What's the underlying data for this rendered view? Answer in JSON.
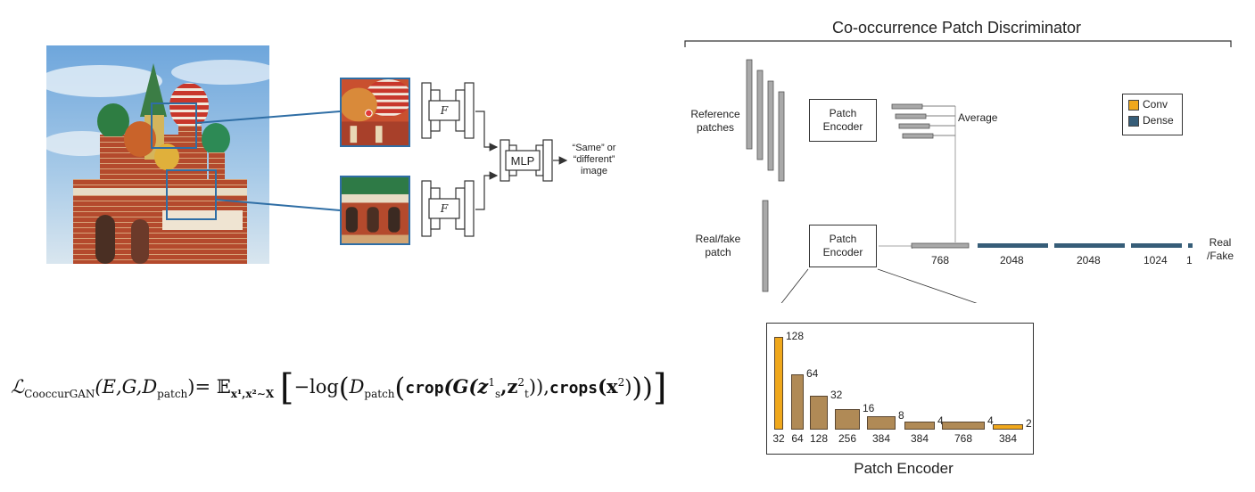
{
  "left_panel": {
    "net_f_label": "F",
    "mlp_label": "MLP",
    "output_label_line1": "“Same” or",
    "output_label_line2": "“different”",
    "output_label_line3": "image"
  },
  "equation": {
    "loss_symbol": "ℒ",
    "loss_subscript": "CooccurGAN",
    "loss_args": "(E,G,D",
    "loss_args_sub": "patch",
    "expectation": "= 𝔼",
    "expectation_sub": "x¹,x²∼X",
    "neg_log": "−log",
    "d_symbol": "D",
    "d_sub": "patch",
    "crop": "crop",
    "g_part": "(G(z",
    "z1_sup": "1",
    "z1_sub": "s",
    "z2_sep": ",z",
    "z2_sup": "2",
    "z2_sub": "t",
    "g_close": ")),",
    "crops": "crops",
    "x_part": "(x",
    "x_sup": "2",
    "x_close": ")"
  },
  "right_panel": {
    "title": "Co-occurrence Patch Discriminator",
    "reference_label_line1": "Reference",
    "reference_label_line2": "patches",
    "realfake_label_line1": "Real/fake",
    "realfake_label_line2": "patch",
    "encoder_label_line1": "Patch",
    "encoder_label_line2": "Encoder",
    "average_label": "Average",
    "output_label_line1": "Real",
    "output_label_line2": "/Fake",
    "legend": [
      {
        "label": "Conv",
        "color": "#f0a81c"
      },
      {
        "label": "Dense",
        "color": "#365d78"
      }
    ],
    "dense_layers": [
      {
        "label": "768"
      },
      {
        "label": "2048"
      },
      {
        "label": "2048"
      },
      {
        "label": "1024"
      },
      {
        "label": "1"
      }
    ]
  },
  "patch_encoder": {
    "title": "Patch Encoder",
    "conv_color": "#f0a81c",
    "block_color": "#b08a56",
    "layers": [
      {
        "channels": "128",
        "size": "32",
        "kind": "conv"
      },
      {
        "channels": "64",
        "size": "64",
        "kind": "block"
      },
      {
        "channels": "32",
        "size": "128",
        "kind": "block"
      },
      {
        "channels": "16",
        "size": "256",
        "kind": "block"
      },
      {
        "channels": "8",
        "size": "384",
        "kind": "block"
      },
      {
        "channels": "4",
        "size": "384",
        "kind": "block"
      },
      {
        "channels": "4",
        "size": "768",
        "kind": "block"
      },
      {
        "channels": "2",
        "size": "384",
        "kind": "conv"
      }
    ]
  }
}
